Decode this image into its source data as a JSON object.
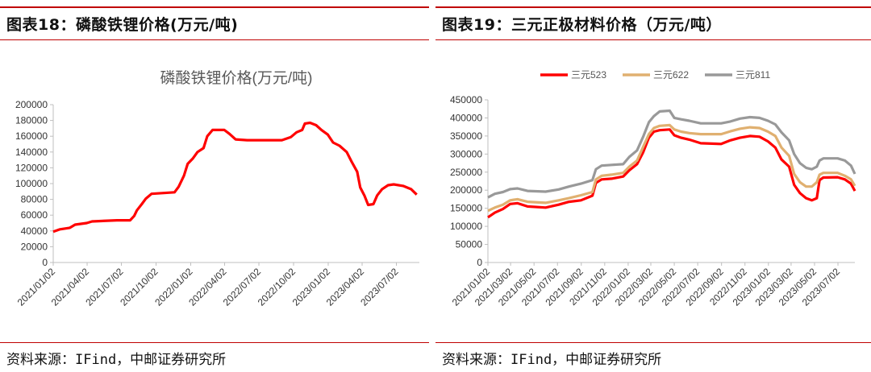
{
  "left": {
    "figure_title": "图表18：磷酸铁锂价格(万元/吨)",
    "source": "资料来源：IFind，中邮证券研究所"
  },
  "right": {
    "figure_title": "图表19：三元正极材料价格（万元/吨）",
    "source": "资料来源：IFind，中邮证券研究所"
  },
  "chart_data": [
    {
      "type": "line",
      "title": "磷酸铁锂价格(万元/吨)",
      "ylim": [
        0,
        200000
      ],
      "ytick_step": 20000,
      "yticks": [
        "0",
        "20000",
        "40000",
        "60000",
        "80000",
        "100000",
        "120000",
        "140000",
        "160000",
        "180000",
        "200000"
      ],
      "xlim": [
        "2021/01/02",
        "2023/09/01"
      ],
      "xticks": [
        "2021/01/02",
        "2021/04/02",
        "2021/07/02",
        "2021/10/02",
        "2022/01/02",
        "2022/04/02",
        "2022/07/02",
        "2022/10/02",
        "2023/01/02",
        "2023/04/02",
        "2023/07/02"
      ],
      "grid": false,
      "legend": "none",
      "series": [
        {
          "color": "#ff0000",
          "points": [
            [
              "2021/01/02",
              39000
            ],
            [
              "2021/01/20",
              42000
            ],
            [
              "2021/02/15",
              44000
            ],
            [
              "2021/03/01",
              48000
            ],
            [
              "2021/04/01",
              50000
            ],
            [
              "2021/04/15",
              52000
            ],
            [
              "2021/06/20",
              53500
            ],
            [
              "2021/07/25",
              53500
            ],
            [
              "2021/08/05",
              59000
            ],
            [
              "2021/08/12",
              66000
            ],
            [
              "2021/08/25",
              74000
            ],
            [
              "2021/09/05",
              81000
            ],
            [
              "2021/09/20",
              87000
            ],
            [
              "2021/11/20",
              89000
            ],
            [
              "2021/12/01",
              96000
            ],
            [
              "2021/12/15",
              110000
            ],
            [
              "2021/12/25",
              125000
            ],
            [
              "2022/01/08",
              132000
            ],
            [
              "2022/01/20",
              140000
            ],
            [
              "2022/02/05",
              145000
            ],
            [
              "2022/02/15",
              160000
            ],
            [
              "2022/03/01",
              168000
            ],
            [
              "2022/04/01",
              168000
            ],
            [
              "2022/04/15",
              163000
            ],
            [
              "2022/05/01",
              156000
            ],
            [
              "2022/06/01",
              155000
            ],
            [
              "2022/09/01",
              155000
            ],
            [
              "2022/09/25",
              159000
            ],
            [
              "2022/10/10",
              165000
            ],
            [
              "2022/10/25",
              168000
            ],
            [
              "2022/11/01",
              176000
            ],
            [
              "2022/11/15",
              177000
            ],
            [
              "2022/12/01",
              174000
            ],
            [
              "2022/12/15",
              168000
            ],
            [
              "2023/01/01",
              162000
            ],
            [
              "2023/01/15",
              152000
            ],
            [
              "2023/02/01",
              148000
            ],
            [
              "2023/02/20",
              140000
            ],
            [
              "2023/03/05",
              128000
            ],
            [
              "2023/03/20",
              115000
            ],
            [
              "2023/03/28",
              95000
            ],
            [
              "2023/04/08",
              85000
            ],
            [
              "2023/04/18",
              73000
            ],
            [
              "2023/05/02",
              74000
            ],
            [
              "2023/05/12",
              85000
            ],
            [
              "2023/05/25",
              93000
            ],
            [
              "2023/06/10",
              98000
            ],
            [
              "2023/06/25",
              99000
            ],
            [
              "2023/07/20",
              97000
            ],
            [
              "2023/08/10",
              93000
            ],
            [
              "2023/08/25",
              86000
            ]
          ]
        }
      ]
    },
    {
      "type": "line",
      "title": "",
      "ylim": [
        0,
        450000
      ],
      "ytick_step": 50000,
      "yticks": [
        "0",
        "50000",
        "100000",
        "150000",
        "200000",
        "250000",
        "300000",
        "350000",
        "400000",
        "450000"
      ],
      "xlim": [
        "2021/01/02",
        "2023/08/15"
      ],
      "xticks": [
        "2021/01/02",
        "2021/03/02",
        "2021/05/02",
        "2021/07/02",
        "2021/09/02",
        "2021/11/02",
        "2022/01/02",
        "2022/03/02",
        "2022/05/02",
        "2022/07/02",
        "2022/09/02",
        "2022/11/02",
        "2023/01/02",
        "2023/03/02",
        "2023/05/02",
        "2023/07/02"
      ],
      "grid": false,
      "legend": "top",
      "series": [
        {
          "name": "三元523",
          "color": "#ff0000",
          "points": [
            [
              "2021/01/02",
              125000
            ],
            [
              "2021/01/20",
              138000
            ],
            [
              "2021/02/10",
              148000
            ],
            [
              "2021/03/01",
              162000
            ],
            [
              "2021/03/20",
              164000
            ],
            [
              "2021/04/15",
              155000
            ],
            [
              "2021/06/01",
              152000
            ],
            [
              "2021/07/05",
              160000
            ],
            [
              "2021/08/01",
              168000
            ],
            [
              "2021/09/01",
              172000
            ],
            [
              "2021/10/01",
              185000
            ],
            [
              "2021/10/10",
              220000
            ],
            [
              "2021/10/25",
              230000
            ],
            [
              "2021/11/20",
              232000
            ],
            [
              "2021/12/20",
              238000
            ],
            [
              "2022/01/05",
              255000
            ],
            [
              "2022/01/25",
              272000
            ],
            [
              "2022/02/10",
              305000
            ],
            [
              "2022/02/25",
              345000
            ],
            [
              "2022/03/10",
              362000
            ],
            [
              "2022/03/25",
              366000
            ],
            [
              "2022/04/20",
              368000
            ],
            [
              "2022/05/02",
              352000
            ],
            [
              "2022/05/20",
              345000
            ],
            [
              "2022/06/10",
              340000
            ],
            [
              "2022/07/10",
              330000
            ],
            [
              "2022/09/01",
              328000
            ],
            [
              "2022/09/25",
              338000
            ],
            [
              "2022/10/20",
              345000
            ],
            [
              "2022/11/15",
              350000
            ],
            [
              "2022/12/10",
              348000
            ],
            [
              "2023/01/01",
              335000
            ],
            [
              "2023/01/20",
              318000
            ],
            [
              "2023/02/05",
              285000
            ],
            [
              "2023/02/25",
              265000
            ],
            [
              "2023/03/10",
              215000
            ],
            [
              "2023/03/25",
              192000
            ],
            [
              "2023/04/10",
              178000
            ],
            [
              "2023/04/25",
              172000
            ],
            [
              "2023/05/08",
              178000
            ],
            [
              "2023/05/15",
              228000
            ],
            [
              "2023/05/25",
              235000
            ],
            [
              "2023/07/01",
              236000
            ],
            [
              "2023/07/20",
              230000
            ],
            [
              "2023/08/05",
              218000
            ],
            [
              "2023/08/15",
              198000
            ]
          ]
        },
        {
          "name": "三元622",
          "color": "#e0b070",
          "points": [
            [
              "2021/01/02",
              143000
            ],
            [
              "2021/01/20",
              152000
            ],
            [
              "2021/02/10",
              160000
            ],
            [
              "2021/03/01",
              172000
            ],
            [
              "2021/03/20",
              175000
            ],
            [
              "2021/04/15",
              168000
            ],
            [
              "2021/06/01",
              165000
            ],
            [
              "2021/07/05",
              172000
            ],
            [
              "2021/08/01",
              178000
            ],
            [
              "2021/09/01",
              186000
            ],
            [
              "2021/10/01",
              195000
            ],
            [
              "2021/10/10",
              230000
            ],
            [
              "2021/10/25",
              240000
            ],
            [
              "2021/11/20",
              243000
            ],
            [
              "2021/12/20",
              248000
            ],
            [
              "2022/01/05",
              265000
            ],
            [
              "2022/01/25",
              282000
            ],
            [
              "2022/02/10",
              320000
            ],
            [
              "2022/02/25",
              355000
            ],
            [
              "2022/03/10",
              372000
            ],
            [
              "2022/03/25",
              378000
            ],
            [
              "2022/04/20",
              380000
            ],
            [
              "2022/05/02",
              368000
            ],
            [
              "2022/05/20",
              362000
            ],
            [
              "2022/06/10",
              358000
            ],
            [
              "2022/07/10",
              355000
            ],
            [
              "2022/09/01",
              355000
            ],
            [
              "2022/09/25",
              363000
            ],
            [
              "2022/10/20",
              370000
            ],
            [
              "2022/11/15",
              374000
            ],
            [
              "2022/12/10",
              372000
            ],
            [
              "2023/01/01",
              362000
            ],
            [
              "2023/01/20",
              350000
            ],
            [
              "2023/02/05",
              318000
            ],
            [
              "2023/02/25",
              295000
            ],
            [
              "2023/03/10",
              245000
            ],
            [
              "2023/03/25",
              222000
            ],
            [
              "2023/04/10",
              210000
            ],
            [
              "2023/04/25",
              210000
            ],
            [
              "2023/05/08",
              222000
            ],
            [
              "2023/05/15",
              243000
            ],
            [
              "2023/05/25",
              248000
            ],
            [
              "2023/07/01",
              248000
            ],
            [
              "2023/07/20",
              240000
            ],
            [
              "2023/08/05",
              230000
            ],
            [
              "2023/08/15",
              212000
            ]
          ]
        },
        {
          "name": "三元811",
          "color": "#999999",
          "points": [
            [
              "2021/01/02",
              180000
            ],
            [
              "2021/01/20",
              190000
            ],
            [
              "2021/02/10",
              195000
            ],
            [
              "2021/03/01",
              203000
            ],
            [
              "2021/03/20",
              205000
            ],
            [
              "2021/04/15",
              198000
            ],
            [
              "2021/06/01",
              196000
            ],
            [
              "2021/07/05",
              202000
            ],
            [
              "2021/08/01",
              210000
            ],
            [
              "2021/09/01",
              218000
            ],
            [
              "2021/10/01",
              228000
            ],
            [
              "2021/10/10",
              258000
            ],
            [
              "2021/10/25",
              268000
            ],
            [
              "2021/11/20",
              270000
            ],
            [
              "2021/12/20",
              272000
            ],
            [
              "2022/01/05",
              292000
            ],
            [
              "2022/01/25",
              310000
            ],
            [
              "2022/02/10",
              348000
            ],
            [
              "2022/02/25",
              388000
            ],
            [
              "2022/03/10",
              405000
            ],
            [
              "2022/03/25",
              418000
            ],
            [
              "2022/04/20",
              420000
            ],
            [
              "2022/05/02",
              400000
            ],
            [
              "2022/05/20",
              396000
            ],
            [
              "2022/06/10",
              392000
            ],
            [
              "2022/07/10",
              385000
            ],
            [
              "2022/09/01",
              385000
            ],
            [
              "2022/09/25",
              390000
            ],
            [
              "2022/10/20",
              398000
            ],
            [
              "2022/11/15",
              402000
            ],
            [
              "2022/12/10",
              400000
            ],
            [
              "2023/01/01",
              392000
            ],
            [
              "2023/01/20",
              382000
            ],
            [
              "2023/02/05",
              360000
            ],
            [
              "2023/02/25",
              338000
            ],
            [
              "2023/03/10",
              300000
            ],
            [
              "2023/03/25",
              275000
            ],
            [
              "2023/04/10",
              262000
            ],
            [
              "2023/04/25",
              258000
            ],
            [
              "2023/05/08",
              265000
            ],
            [
              "2023/05/15",
              282000
            ],
            [
              "2023/05/25",
              288000
            ],
            [
              "2023/07/01",
              288000
            ],
            [
              "2023/07/20",
              282000
            ],
            [
              "2023/08/05",
              268000
            ],
            [
              "2023/08/15",
              245000
            ]
          ]
        }
      ]
    }
  ]
}
